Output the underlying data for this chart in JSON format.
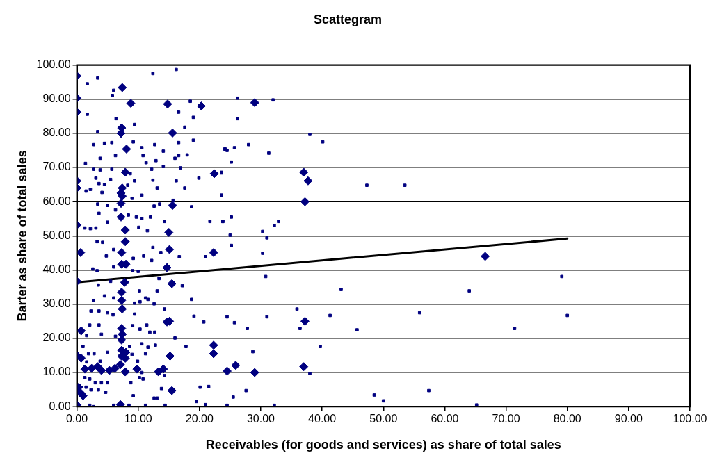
{
  "chart_data": {
    "type": "scatter",
    "title": "Scattegram",
    "xlabel": "Receivables (for goods and services) as share of total sales",
    "ylabel": "Barter as share of total sales",
    "xlim": [
      0,
      100
    ],
    "ylim": [
      0,
      100
    ],
    "xticks": [
      {
        "value": 0,
        "label": "0.00"
      },
      {
        "value": 10,
        "label": "10.00"
      },
      {
        "value": 20,
        "label": "20.00"
      },
      {
        "value": 30,
        "label": "30.00"
      },
      {
        "value": 40,
        "label": "40.00"
      },
      {
        "value": 50,
        "label": "50.00"
      },
      {
        "value": 60,
        "label": "60.00"
      },
      {
        "value": 70,
        "label": "70.00"
      },
      {
        "value": 80,
        "label": "80.00"
      },
      {
        "value": 90,
        "label": "90.00"
      },
      {
        "value": 100,
        "label": "100.00"
      }
    ],
    "yticks": [
      {
        "value": 0,
        "label": "0.00"
      },
      {
        "value": 10,
        "label": "10.00"
      },
      {
        "value": 20,
        "label": "20.00"
      },
      {
        "value": 30,
        "label": "30.00"
      },
      {
        "value": 40,
        "label": "40.00"
      },
      {
        "value": 50,
        "label": "50.00"
      },
      {
        "value": 60,
        "label": "60.00"
      },
      {
        "value": 70,
        "label": "70.00"
      },
      {
        "value": 80,
        "label": "80.00"
      },
      {
        "value": 90,
        "label": "90.00"
      },
      {
        "value": 100,
        "label": "100.00"
      }
    ],
    "grid": "y",
    "legend": false,
    "series": [
      {
        "type": "scatter",
        "marker": "square",
        "color": "#000080",
        "x": [
          16.2,
          12.4,
          3.4,
          1.7,
          6,
          5.8,
          18.5,
          16.6,
          19,
          1.7,
          6.4,
          9.4,
          17.6,
          3.4,
          16.6,
          19,
          2.7,
          4.5,
          5.7,
          9.2,
          10.6,
          12.7,
          14.1,
          6.3,
          10.8,
          16,
          16.6,
          18,
          24.2,
          3.8,
          1.4,
          2.7,
          3.8,
          5.7,
          11.3,
          12.2,
          12.9,
          14.1,
          16.9,
          23.6,
          8.7,
          3.1,
          5.5,
          9.4,
          12.4,
          16.2,
          19.9,
          3.6,
          4.5,
          8.3,
          13.1,
          17.6,
          1.5,
          2.2,
          4.1,
          23.6,
          9,
          10.6,
          12.6,
          13.5,
          15.7,
          18.7,
          3.4,
          5,
          3.6,
          6.3,
          8.4,
          9.7,
          10.6,
          12,
          14.3,
          21.7,
          23.8,
          5,
          1.3,
          2.2,
          3.1,
          10.1,
          11.5,
          26.2,
          32,
          26.2,
          38,
          40.1,
          24.1,
          24.5,
          25.7,
          28,
          31.3,
          25.2,
          23.6,
          47.3,
          23.6,
          23.8,
          25.2,
          30.3,
          32.2,
          32.9,
          25,
          31,
          53.5,
          79.1,
          64,
          55.9,
          80,
          71.4,
          57.4,
          50,
          65.2,
          25.2,
          30.3,
          30.8,
          43.1,
          35.9,
          41.3,
          24.5,
          31,
          25.7,
          27.8,
          36.4,
          45.7,
          39.7,
          28.7,
          38,
          27.6,
          25.5,
          48.5,
          24.5,
          32.2,
          3.3,
          4.2,
          6,
          4.8,
          9.2,
          10.9,
          12.4,
          13.7,
          12.2,
          16.7,
          21,
          2.6,
          3.3,
          6,
          9.1,
          10,
          13.4,
          3.5,
          5.5,
          17.2,
          10.2,
          13.1,
          2.7,
          4.5,
          6,
          9.4,
          10.3,
          11.2,
          11.6,
          12.6,
          14.3,
          18.7,
          2.3,
          3.6,
          5,
          5.9,
          9.4,
          19.1,
          20.7,
          2.1,
          3.6,
          9.1,
          10.3,
          11.4,
          11.9,
          12.7,
          16,
          1.6,
          4,
          6.3,
          8.6,
          10.6,
          11.6,
          12.8,
          17.8,
          1,
          1.9,
          2.8,
          5,
          9,
          11.2,
          1.6,
          3.8,
          9.9,
          10.6,
          10.2,
          10.8,
          14.3,
          1.3,
          2.1,
          3,
          4,
          5,
          8.8,
          1.5,
          2.3,
          3.5,
          4.7,
          13.8,
          20.1,
          21.5,
          9.2,
          12.6,
          13.1,
          2.1,
          2.7,
          6,
          8.5,
          11.2,
          14.4,
          19.5,
          21
        ],
        "values": [
          98.7,
          97.5,
          96.2,
          94.5,
          92.6,
          91.1,
          89.4,
          86.2,
          84.7,
          85.6,
          84.3,
          82.6,
          81.8,
          80.5,
          77.3,
          78,
          76.7,
          77.1,
          77.3,
          77.5,
          75.8,
          76.7,
          74.8,
          73.5,
          73.5,
          72.7,
          73.5,
          73.7,
          75.4,
          72.7,
          71.2,
          69.5,
          69.3,
          69.5,
          71.4,
          69.5,
          72,
          70.3,
          69.9,
          68.4,
          68.2,
          66.9,
          66.5,
          66.1,
          66.3,
          66.1,
          66.9,
          65.3,
          65,
          64.8,
          64,
          64,
          63.1,
          63.6,
          62.7,
          61.9,
          61,
          61.9,
          58.7,
          59.3,
          60.4,
          58.5,
          59.3,
          58.9,
          56.6,
          57.6,
          56.1,
          55.5,
          55.1,
          55.5,
          54.2,
          54.2,
          54.2,
          54,
          52.3,
          52.1,
          52.3,
          52.5,
          51.5,
          90.3,
          89.8,
          84.3,
          79.7,
          77.5,
          75.4,
          75,
          75.8,
          76.7,
          74.2,
          71.6,
          68.6,
          64.8,
          61.9,
          54.2,
          55.5,
          51.3,
          53,
          54.2,
          50.2,
          49.4,
          64.8,
          38.1,
          33.9,
          27.5,
          26.7,
          22.9,
          4.7,
          1.7,
          0.5,
          47.2,
          44.9,
          38.1,
          34.3,
          28.6,
          26.7,
          26.3,
          26.3,
          24.6,
          22.9,
          22.9,
          22.5,
          17.6,
          16.1,
          9.7,
          4.7,
          2.8,
          3.4,
          0.4,
          0.4,
          48.3,
          48.1,
          46,
          44.1,
          43.4,
          44.1,
          46.6,
          45.1,
          42.8,
          43.9,
          43.9,
          40.3,
          39.8,
          40.9,
          39.8,
          39.6,
          37.5,
          35.6,
          36.7,
          35.4,
          33.9,
          33.9,
          31.1,
          32.4,
          31.8,
          30.3,
          30.7,
          31.8,
          31.4,
          30.1,
          28.6,
          31.4,
          28,
          28,
          27.5,
          26.9,
          27.1,
          26.5,
          24.8,
          23.9,
          23.9,
          23.7,
          22.7,
          23.9,
          21.8,
          21.8,
          20.1,
          20.8,
          21.2,
          20.6,
          17.6,
          18.4,
          17.4,
          18,
          17.6,
          17.6,
          15.5,
          15.5,
          15.9,
          15.3,
          15.5,
          13.1,
          13.3,
          13.3,
          10,
          8.5,
          8.1,
          9.1,
          8.5,
          8.1,
          7,
          7,
          7,
          7,
          5.7,
          4.9,
          4.9,
          4.2,
          5.3,
          5.7,
          5.9,
          3.2,
          2.5,
          2.5,
          0.4,
          0,
          0.4,
          0.4,
          0.4,
          0.4,
          1.5,
          0.6
        ]
      },
      {
        "type": "scatter",
        "marker": "diamond",
        "color": "#000080",
        "x": [
          0,
          0,
          0,
          0,
          0,
          0,
          0,
          0,
          0,
          7.4,
          8.8,
          14.8,
          20.3,
          7.3,
          7.2,
          8.1,
          7.9,
          7.4,
          7.4,
          7.9,
          22.4,
          15.6,
          29,
          37,
          37.7,
          37.2,
          37.2,
          24.5,
          25.9,
          29,
          37,
          66.6,
          7.2,
          7.2,
          15.6,
          7.2,
          15,
          0.6,
          7.9,
          7.3,
          15.1,
          22.3,
          7.3,
          8,
          14.7,
          7.8,
          15.5,
          7.3,
          7.3,
          7.4,
          14.7,
          15.1,
          0.7,
          7.3,
          7.4,
          7.3,
          22.3,
          22.3,
          15.2,
          0.7,
          7.3,
          8,
          7.3,
          7.9,
          1.3,
          2.4,
          3.4,
          4,
          5.3,
          6.2,
          7.1,
          7.9,
          9.8,
          13.3,
          14.1,
          0.3,
          0.5,
          1,
          15.5,
          7.1
        ],
        "values": [
          96.8,
          90.3,
          86.2,
          66.1,
          64,
          53.2,
          36.7,
          15,
          0.5,
          93.4,
          88.8,
          88.6,
          88,
          81.6,
          80,
          75.4,
          68.6,
          64,
          61.6,
          51.7,
          68.2,
          80.1,
          89,
          68.6,
          66.1,
          60,
          25,
          10.4,
          12.1,
          10,
          11.7,
          44,
          62.5,
          59.5,
          58.9,
          55.5,
          51,
          45.1,
          48.3,
          45.1,
          46,
          45.1,
          41.7,
          41.7,
          40.7,
          36.4,
          36,
          33.5,
          31.1,
          28.6,
          24.8,
          25,
          22.2,
          22.9,
          21.2,
          19.5,
          18,
          15.5,
          14.8,
          14.2,
          16.5,
          15.9,
          14.8,
          14.2,
          11,
          11.2,
          11.7,
          10.6,
          10.6,
          11.2,
          12.3,
          10.2,
          11,
          10.2,
          11,
          5.7,
          4.2,
          3.2,
          4.7,
          0.6
        ]
      },
      {
        "type": "line",
        "marker": "none",
        "line_style": "solid",
        "color": "#000000",
        "x": [
          0,
          80
        ],
        "values": [
          36.4,
          49.2
        ]
      }
    ]
  }
}
